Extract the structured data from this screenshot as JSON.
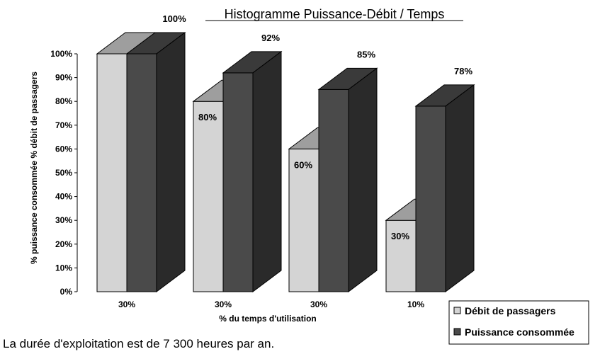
{
  "chart_data": {
    "type": "bar",
    "title": "Histogramme Puissance-Débit / Temps",
    "xlabel": "% du temps d'utilisation",
    "ylabel": "% puissance consommée % débit de passagers",
    "ylim": [
      0,
      100
    ],
    "yticks": [
      "0%",
      "10%",
      "20%",
      "30%",
      "40%",
      "50%",
      "60%",
      "70%",
      "80%",
      "90%",
      "100%"
    ],
    "categories": [
      "30%",
      "30%",
      "30%",
      "10%"
    ],
    "series": [
      {
        "name": "Débit de passagers",
        "values": [
          100,
          80,
          60,
          30
        ],
        "labels": [
          "",
          "80%",
          "60%",
          "30%"
        ],
        "color": "#d4d4d4"
      },
      {
        "name": "Puissance consommée",
        "values": [
          100,
          92,
          85,
          78
        ],
        "labels": [
          "100%",
          "92%",
          "85%",
          "78%"
        ],
        "color": "#4a4a4a"
      }
    ],
    "three_d": true,
    "grid": false,
    "legend_position": "bottom-right"
  },
  "note": "La durée d'exploitation est de 7 300 heures par an."
}
